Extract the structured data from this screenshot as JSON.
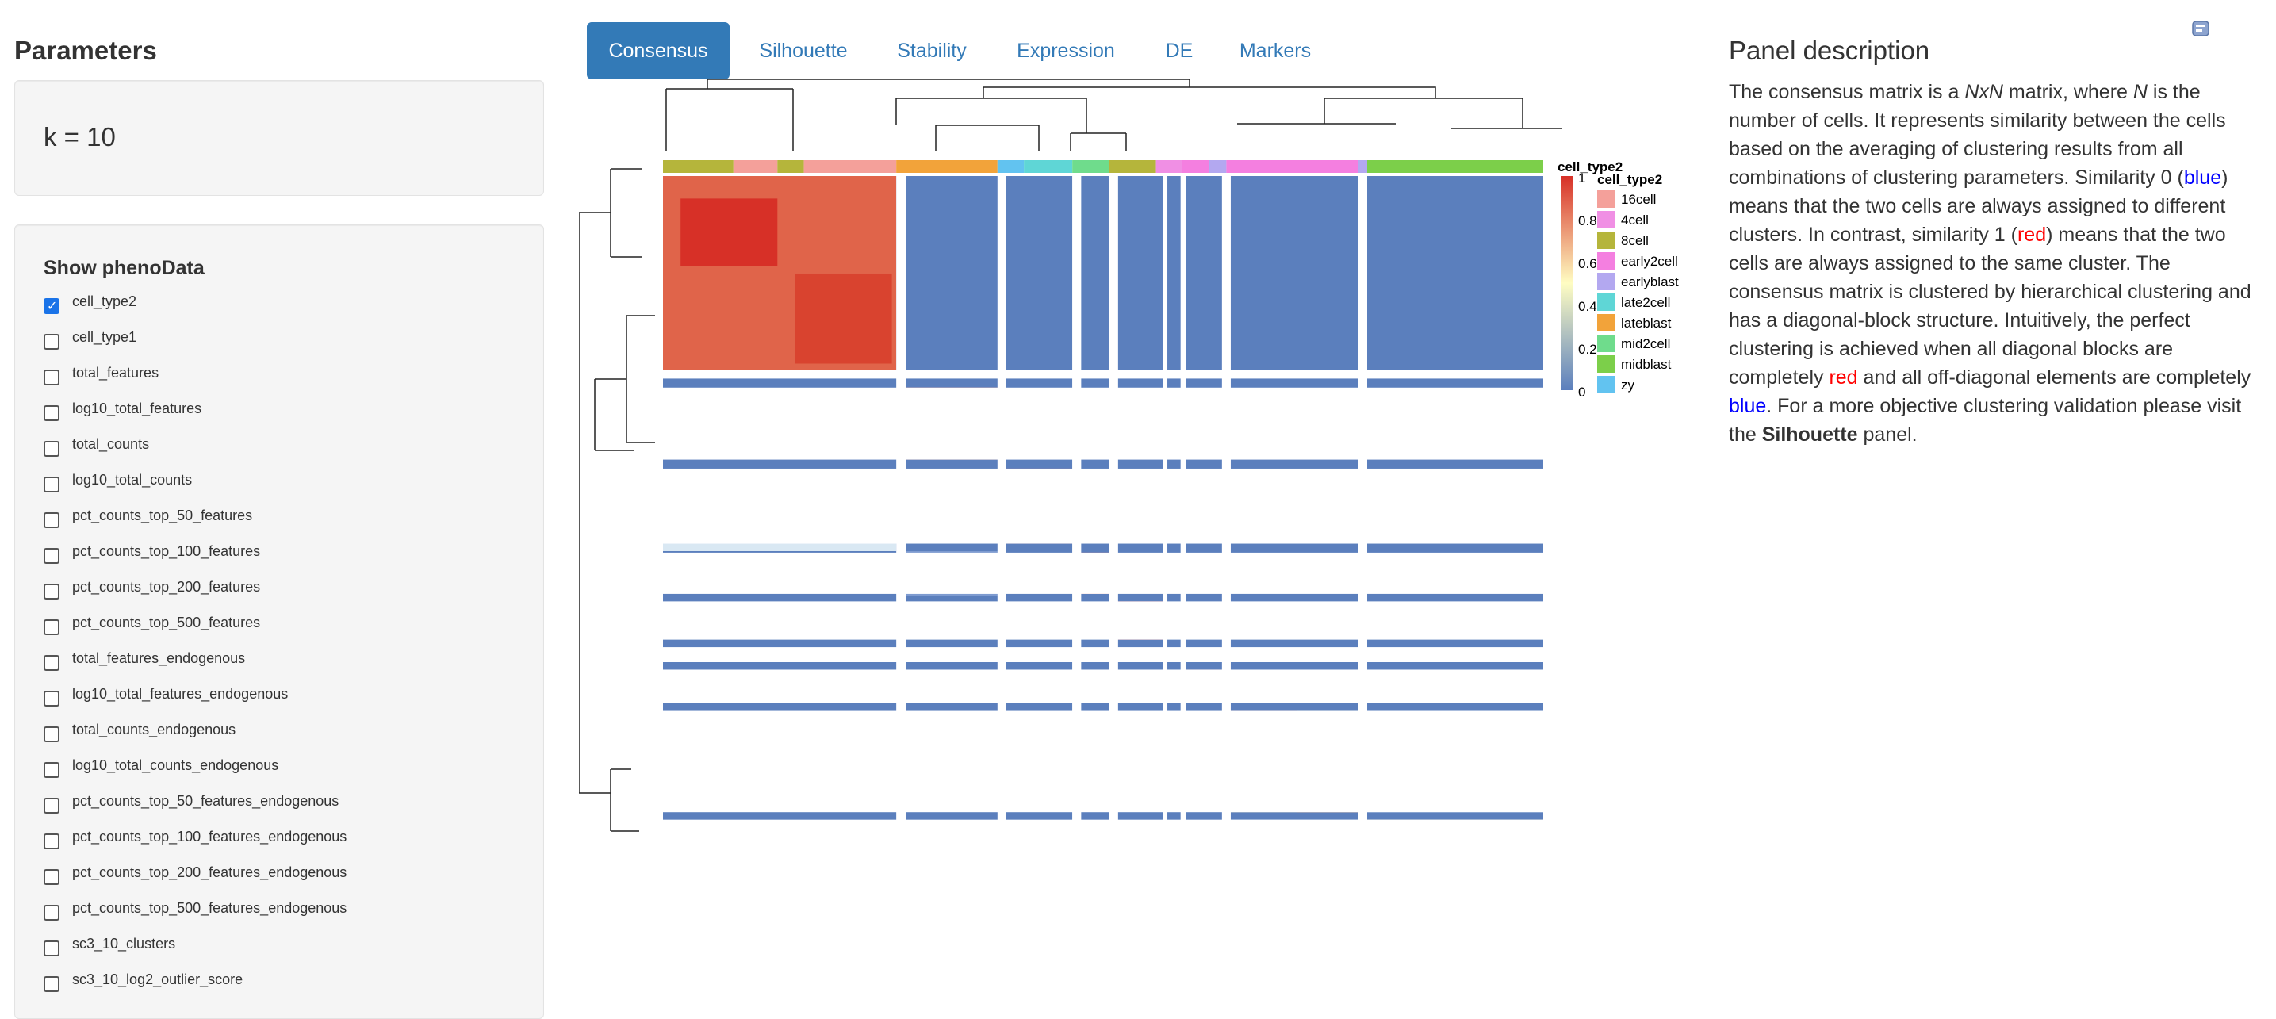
{
  "sidebar": {
    "title": "Parameters",
    "k_label": "k = 10",
    "pheno_title": "Show phenoData",
    "items": [
      {
        "label": "cell_type2",
        "checked": true
      },
      {
        "label": "cell_type1",
        "checked": false
      },
      {
        "label": "total_features",
        "checked": false
      },
      {
        "label": "log10_total_features",
        "checked": false
      },
      {
        "label": "total_counts",
        "checked": false
      },
      {
        "label": "log10_total_counts",
        "checked": false
      },
      {
        "label": "pct_counts_top_50_features",
        "checked": false
      },
      {
        "label": "pct_counts_top_100_features",
        "checked": false
      },
      {
        "label": "pct_counts_top_200_features",
        "checked": false
      },
      {
        "label": "pct_counts_top_500_features",
        "checked": false
      },
      {
        "label": "total_features_endogenous",
        "checked": false
      },
      {
        "label": "log10_total_features_endogenous",
        "checked": false
      },
      {
        "label": "total_counts_endogenous",
        "checked": false
      },
      {
        "label": "log10_total_counts_endogenous",
        "checked": false
      },
      {
        "label": "pct_counts_top_50_features_endogenous",
        "checked": false
      },
      {
        "label": "pct_counts_top_100_features_endogenous",
        "checked": false
      },
      {
        "label": "pct_counts_top_200_features_endogenous",
        "checked": false
      },
      {
        "label": "pct_counts_top_500_features_endogenous",
        "checked": false
      },
      {
        "label": "sc3_10_clusters",
        "checked": false
      },
      {
        "label": "sc3_10_log2_outlier_score",
        "checked": false
      }
    ]
  },
  "tabs": [
    {
      "label": "Consensus",
      "active": true
    },
    {
      "label": "Silhouette",
      "active": false
    },
    {
      "label": "Stability",
      "active": false
    },
    {
      "label": "Expression",
      "active": false
    },
    {
      "label": "DE",
      "active": false
    },
    {
      "label": "Markers",
      "active": false
    }
  ],
  "heatmap": {
    "annotation_title": "cell_type2",
    "color_legend_title": "cell_type2",
    "color_ticks": [
      "1",
      "0.8",
      "0.6",
      "0.4",
      "0.2",
      "0"
    ],
    "legend": [
      {
        "name": "16cell",
        "color": "#f4a09a"
      },
      {
        "name": "4cell",
        "color": "#f08fe4"
      },
      {
        "name": "8cell",
        "color": "#b5b53b"
      },
      {
        "name": "early2cell",
        "color": "#f47fe0"
      },
      {
        "name": "earlyblast",
        "color": "#b3a8f0"
      },
      {
        "name": "late2cell",
        "color": "#5fd6d6"
      },
      {
        "name": "lateblast",
        "color": "#f2a33a"
      },
      {
        "name": "mid2cell",
        "color": "#6fdc8c"
      },
      {
        "name": "midblast",
        "color": "#7ccf4a"
      },
      {
        "name": "zy",
        "color": "#62c3f0"
      }
    ],
    "colors": {
      "high": "#d73027",
      "mid": "#fffdc2",
      "low": "#5b7fbd"
    }
  },
  "description": {
    "title": "Panel description",
    "p1": "The consensus matrix is a ",
    "nxn": "NxN",
    "p2": " matrix, where ",
    "n": "N",
    "p3": " is the number of cells. It represents similarity between the cells based on the averaging of clustering results from all combinations of clustering parameters. Similarity 0 (",
    "blue1": "blue",
    "p4": ") means that the two cells are always assigned to different clusters. In contrast, similarity 1 (",
    "red1": "red",
    "p5": ") means that the two cells are always assigned to the same cluster. The consensus matrix is clustered by hierarchical clustering and has a diagonal-block structure. Intuitively, the perfect clustering is achieved when all diagonal blocks are completely ",
    "red2": "red",
    "p6": " and all off-diagonal elements are completely ",
    "blue2": "blue",
    "p7": ". For a more objective clustering validation please visit the ",
    "bold": "Silhouette",
    "p8": " panel."
  }
}
